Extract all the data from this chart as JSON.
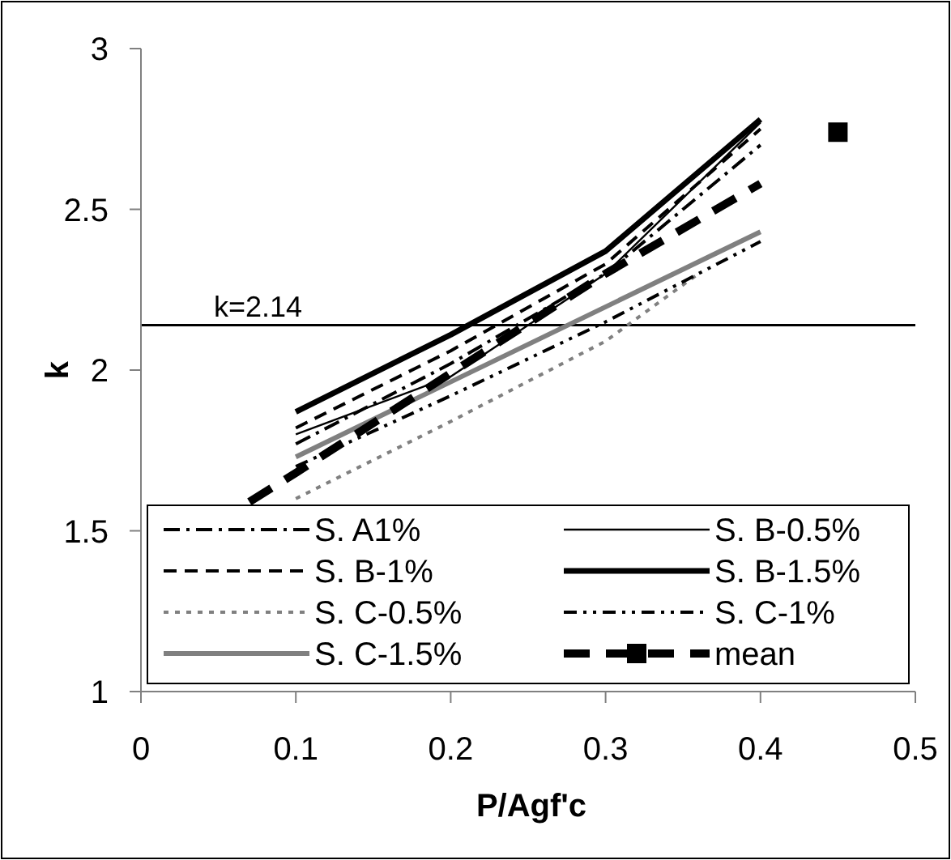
{
  "chart_data": {
    "type": "line",
    "xlabel": "P/Agf'c",
    "ylabel": "k",
    "xlim": [
      0,
      0.5
    ],
    "xticks": [
      0,
      0.1,
      0.2,
      0.3,
      0.4,
      0.5
    ],
    "ylim": [
      1,
      3
    ],
    "yticks": [
      1,
      1.5,
      2,
      2.5,
      3
    ],
    "grid": false,
    "legend": "bottom",
    "marker": "none",
    "ref_lines": [
      {
        "axis": "y",
        "value": 2.14,
        "label": "k=2.14",
        "color": "#000000",
        "line_style": "solid"
      }
    ],
    "series": [
      {
        "name": "S. A1%",
        "color": "#000000",
        "line_style": "dashdot",
        "x": [
          0.1,
          0.2,
          0.3,
          0.4
        ],
        "values": [
          1.77,
          2.02,
          2.3,
          2.7
        ]
      },
      {
        "name": "S. B-0.5%",
        "color": "#000000",
        "line_style": "solid",
        "x": [
          0.1,
          0.2,
          0.3,
          0.4
        ],
        "values": [
          1.8,
          1.98,
          2.3,
          2.77
        ]
      },
      {
        "name": "S. B-1%",
        "color": "#000000",
        "line_style": "dashed",
        "x": [
          0.1,
          0.2,
          0.3,
          0.4
        ],
        "values": [
          1.82,
          2.06,
          2.33,
          2.75
        ]
      },
      {
        "name": "S. B-1.5%",
        "color": "#000000",
        "line_style": "solid",
        "x": [
          0.1,
          0.2,
          0.3,
          0.4
        ],
        "values": [
          1.87,
          2.11,
          2.37,
          2.78
        ]
      },
      {
        "name": "S. C-0.5%",
        "color": "#808080",
        "line_style": "dotted",
        "x": [
          0.1,
          0.2,
          0.3,
          0.36
        ],
        "values": [
          1.6,
          1.84,
          2.09,
          2.3
        ]
      },
      {
        "name": "S. C-1%",
        "color": "#000000",
        "line_style": "dashdotdot",
        "x": [
          0.1,
          0.2,
          0.3,
          0.4
        ],
        "values": [
          1.7,
          1.92,
          2.15,
          2.4
        ]
      },
      {
        "name": "S. C-1.5%",
        "color": "#808080",
        "line_style": "solid",
        "x": [
          0.1,
          0.4
        ],
        "values": [
          1.73,
          2.43
        ]
      },
      {
        "name": "mean",
        "color": "#000000",
        "line_style": "dashed",
        "marker": "square",
        "x": [
          0.45
        ],
        "values": [
          2.74
        ]
      },
      {
        "color": "#000000",
        "line_style": "dashed",
        "x": [
          0.07,
          0.1,
          0.2,
          0.3,
          0.4
        ],
        "values": [
          1.59,
          1.68,
          1.99,
          2.3,
          2.58
        ]
      }
    ]
  }
}
